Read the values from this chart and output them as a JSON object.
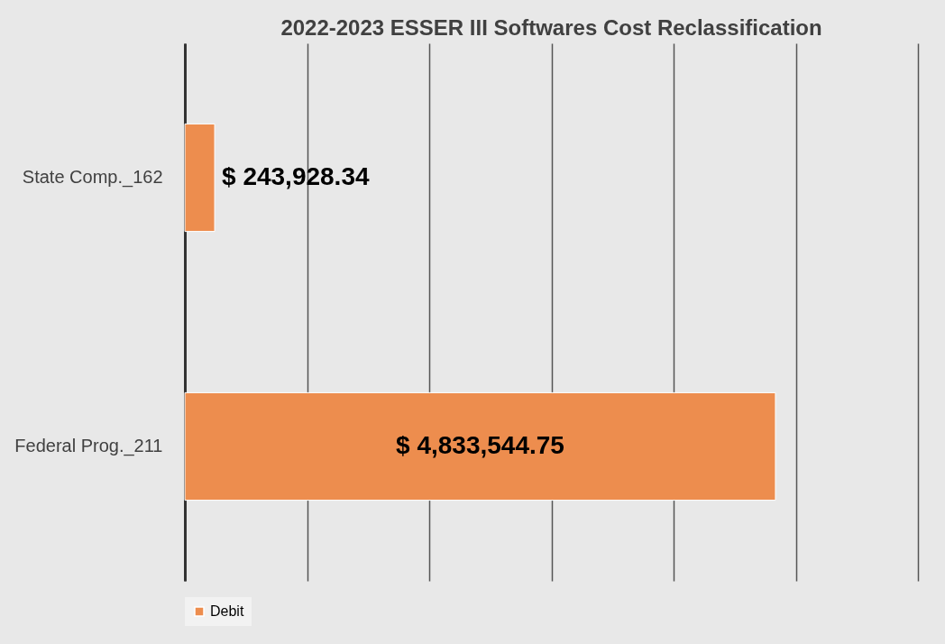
{
  "chart_data": {
    "type": "bar",
    "orientation": "horizontal",
    "title": "2022-2023 ESSER III Softwares Cost Reclassification",
    "categories": [
      "State Comp._162",
      "Federal Prog._211"
    ],
    "series": [
      {
        "name": "Debit",
        "color": "#ed8d4e",
        "values": [
          243928.34,
          4833544.75
        ],
        "value_labels": [
          "$ 243,928.34",
          "$ 4,833,544.75"
        ]
      }
    ],
    "xlim": [
      0,
      6000000
    ],
    "xticks": [
      {
        "value": 0,
        "label": null
      },
      {
        "value": 1000000,
        "label": null
      },
      {
        "value": 2000000,
        "label": null
      },
      {
        "value": 3000000,
        "label": null
      },
      {
        "value": 4000000,
        "label": null
      },
      {
        "value": 5000000,
        "label": null
      },
      {
        "value": 6000000,
        "label": null
      }
    ],
    "tick_labels": "y",
    "grid": "x",
    "legend": "bottom"
  }
}
